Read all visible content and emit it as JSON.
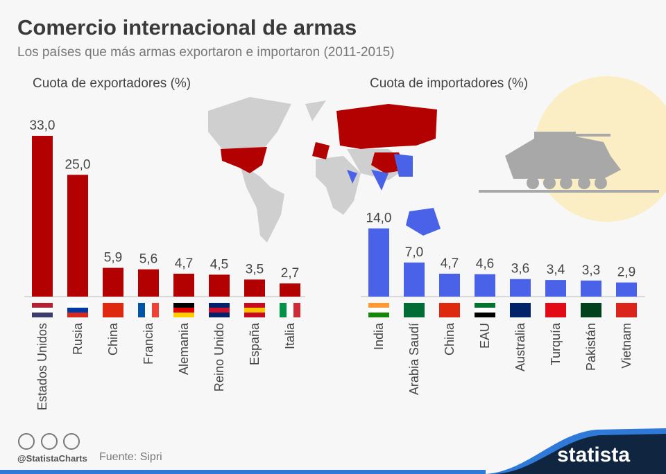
{
  "header": {
    "title": "Comercio internacional de armas",
    "subtitle": "Los países que más armas exportaron e importaron (2011-2015)"
  },
  "chart_data": [
    {
      "type": "bar",
      "title": "Cuota de exportadores (%)",
      "color": "#b30000",
      "categories": [
        "Estados Unidos",
        "Rusia",
        "China",
        "Francia",
        "Alemania",
        "Reino Unido",
        "España",
        "Italia"
      ],
      "values": [
        33.0,
        25.0,
        5.9,
        5.6,
        4.7,
        4.5,
        3.5,
        2.7
      ],
      "labels": [
        "33,0",
        "25,0",
        "5,9",
        "5,6",
        "4,7",
        "4,5",
        "3,5",
        "2,7"
      ],
      "flags": [
        "us-flag-icon",
        "russia-flag-icon",
        "china-flag-icon",
        "france-flag-icon",
        "germany-flag-icon",
        "uk-flag-icon",
        "spain-flag-icon",
        "italy-flag-icon"
      ]
    },
    {
      "type": "bar",
      "title": "Cuota de importadores (%)",
      "color": "#4a62e8",
      "categories": [
        "India",
        "Arabia Saudí",
        "China",
        "EAU",
        "Australia",
        "Turquía",
        "Pakistán",
        "Vietnam"
      ],
      "values": [
        14.0,
        7.0,
        4.7,
        4.6,
        3.6,
        3.4,
        3.3,
        2.9
      ],
      "labels": [
        "14,0",
        "7,0",
        "4,7",
        "4,6",
        "3,6",
        "3,4",
        "3,3",
        "2,9"
      ],
      "flags": [
        "india-flag-icon",
        "saudi-arabia-flag-icon",
        "china-flag-icon",
        "uae-flag-icon",
        "australia-flag-icon",
        "turkey-flag-icon",
        "pakistan-flag-icon",
        "vietnam-flag-icon"
      ]
    }
  ],
  "footer": {
    "handle": "@StatistaCharts",
    "source": "Fuente: Sipri",
    "logo": "statista"
  }
}
